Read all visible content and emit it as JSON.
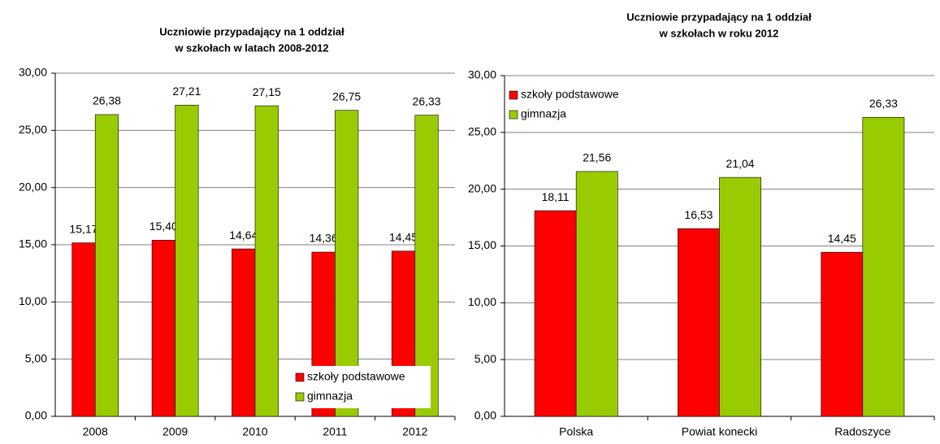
{
  "chart_data": [
    {
      "type": "bar",
      "title": [
        "Uczniowie przypadający na 1 oddział",
        "w szkołach w latach 2008-2012"
      ],
      "categories": [
        "2008",
        "2009",
        "2010",
        "2011",
        "2012"
      ],
      "series": [
        {
          "name": "szkoły podstawowe",
          "color": "#ff0000",
          "values": [
            15.17,
            15.4,
            14.64,
            14.36,
            14.45
          ],
          "value_labels": [
            "15,17",
            "15,40",
            "14,64",
            "14,36",
            "14,45"
          ]
        },
        {
          "name": "gimnazja",
          "color": "#99cc00",
          "values": [
            26.38,
            27.21,
            27.15,
            26.75,
            26.33
          ],
          "value_labels": [
            "26,38",
            "27,21",
            "27,15",
            "26,75",
            "26,33"
          ]
        }
      ],
      "ylim": [
        0,
        30
      ],
      "yticks": [
        {
          "value": 0,
          "label": "0,00"
        },
        {
          "value": 5,
          "label": "5,00"
        },
        {
          "value": 10,
          "label": "10,00"
        },
        {
          "value": 15,
          "label": "15,00"
        },
        {
          "value": 20,
          "label": "20,00"
        },
        {
          "value": 25,
          "label": "25,00"
        },
        {
          "value": 30,
          "label": "30,00"
        }
      ],
      "grid": true,
      "legend": "lower right"
    },
    {
      "type": "bar",
      "title": [
        "Uczniowie przypadający na 1 oddział",
        "w szkołach w roku 2012"
      ],
      "categories": [
        "Polska",
        "Powiat konecki",
        "Radoszyce"
      ],
      "series": [
        {
          "name": "szkoły podstawowe",
          "color": "#ff0000",
          "values": [
            18.11,
            16.53,
            14.45
          ],
          "value_labels": [
            "18,11",
            "16,53",
            "14,45"
          ]
        },
        {
          "name": "gimnazja",
          "color": "#99cc00",
          "values": [
            21.56,
            21.04,
            26.33
          ],
          "value_labels": [
            "21,56",
            "21,04",
            "26,33"
          ]
        }
      ],
      "ylim": [
        0,
        30
      ],
      "yticks": [
        {
          "value": 0,
          "label": "0,00"
        },
        {
          "value": 5,
          "label": "5,00"
        },
        {
          "value": 10,
          "label": "10,00"
        },
        {
          "value": 15,
          "label": "15,00"
        },
        {
          "value": 20,
          "label": "20,00"
        },
        {
          "value": 25,
          "label": "25,00"
        },
        {
          "value": 30,
          "label": "30,00"
        }
      ],
      "grid": true,
      "legend": "upper left"
    }
  ]
}
